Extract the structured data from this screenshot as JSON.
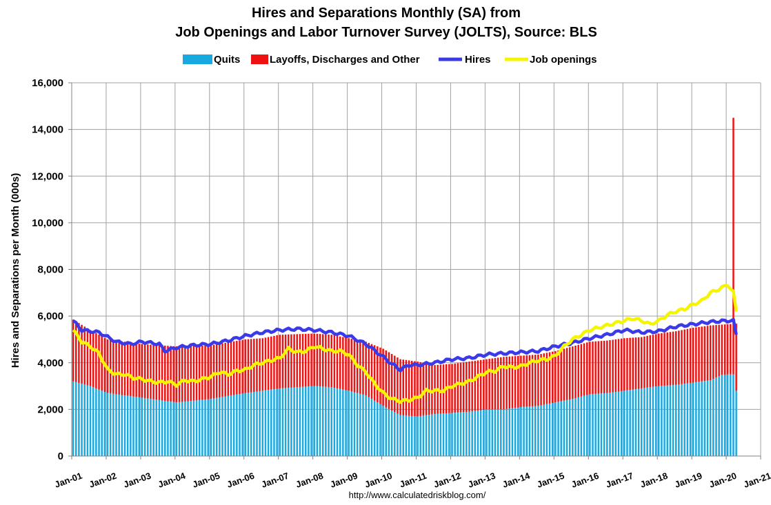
{
  "chart_data": {
    "type": "bar",
    "title_line1": "Hires and Separations Monthly (SA) from",
    "title_line2": "Job Openings and Labor Turnover Survey (JOLTS), Source: BLS",
    "ylabel": "Hires and Separations per Month (000s)",
    "xlabel": "",
    "source": "http://www.calculatedriskblog.com/",
    "ylim": [
      0,
      16000
    ],
    "yticks": [
      "0",
      "2,000",
      "4,000",
      "6,000",
      "8,000",
      "10,000",
      "12,000",
      "14,000",
      "16,000"
    ],
    "ytick_values": [
      0,
      2000,
      4000,
      6000,
      8000,
      10000,
      12000,
      14000,
      16000
    ],
    "xticks": [
      "Jan-01",
      "Jan-02",
      "Jan-03",
      "Jan-04",
      "Jan-05",
      "Jan-06",
      "Jan-07",
      "Jan-08",
      "Jan-09",
      "Jan-10",
      "Jan-11",
      "Jan-12",
      "Jan-13",
      "Jan-14",
      "Jan-15",
      "Jan-16",
      "Jan-17",
      "Jan-18",
      "Jan-19",
      "Jan-20",
      "Jan-21"
    ],
    "x_start": "Jan-01",
    "frequency": "monthly",
    "grid": true,
    "legend_position": "top-center",
    "legend": [
      {
        "name": "Quits",
        "kind": "bar",
        "color": "#19a9e1"
      },
      {
        "name": "Layoffs, Discharges and Other",
        "kind": "bar",
        "color": "#ee1111"
      },
      {
        "name": "Hires",
        "kind": "line",
        "color": "#3a3ae8"
      },
      {
        "name": "Job openings",
        "kind": "line",
        "color": "#f5f500"
      }
    ],
    "series": [
      {
        "name": "Quits",
        "role": "stacked-bar-bottom",
        "anchors": [
          [
            0,
            3200
          ],
          [
            6,
            3000
          ],
          [
            12,
            2700
          ],
          [
            24,
            2500
          ],
          [
            36,
            2300
          ],
          [
            48,
            2450
          ],
          [
            60,
            2700
          ],
          [
            66,
            2800
          ],
          [
            72,
            2900
          ],
          [
            84,
            3000
          ],
          [
            90,
            2950
          ],
          [
            96,
            2800
          ],
          [
            102,
            2600
          ],
          [
            108,
            2150
          ],
          [
            114,
            1750
          ],
          [
            120,
            1700
          ],
          [
            126,
            1800
          ],
          [
            132,
            1850
          ],
          [
            138,
            1900
          ],
          [
            144,
            2000
          ],
          [
            150,
            2000
          ],
          [
            156,
            2100
          ],
          [
            162,
            2150
          ],
          [
            168,
            2300
          ],
          [
            174,
            2450
          ],
          [
            180,
            2650
          ],
          [
            186,
            2700
          ],
          [
            192,
            2800
          ],
          [
            198,
            2900
          ],
          [
            204,
            3000
          ],
          [
            210,
            3050
          ],
          [
            216,
            3150
          ],
          [
            222,
            3250
          ],
          [
            228,
            3400
          ],
          [
            234,
            3450
          ],
          [
            240,
            3550
          ],
          [
            226,
            3480
          ],
          [
            228,
            3500
          ],
          [
            229,
            3350
          ],
          [
            230,
            3500
          ],
          [
            231,
            3550
          ],
          [
            234,
            3500
          ],
          [
            236,
            3500
          ],
          [
            237,
            3470
          ],
          [
            238,
            3450
          ],
          [
            239,
            3480
          ],
          [
            240,
            3500
          ],
          [
            241,
            3400
          ],
          [
            242,
            3450
          ],
          [
            243,
            3500
          ],
          [
            244,
            3500
          ],
          [
            245,
            3550
          ],
          [
            246,
            3500
          ],
          [
            247,
            3450
          ],
          [
            248,
            3500
          ],
          [
            229,
            3500
          ],
          [
            230,
            3500
          ],
          [
            231,
            2800
          ]
        ]
      },
      {
        "name": "Layoffs, Discharges and Other",
        "role": "stacked-bar-top",
        "anchors": [
          [
            0,
            5850
          ],
          [
            6,
            5400
          ],
          [
            12,
            5000
          ],
          [
            24,
            4800
          ],
          [
            36,
            4700
          ],
          [
            48,
            4750
          ],
          [
            60,
            5000
          ],
          [
            66,
            5050
          ],
          [
            72,
            5200
          ],
          [
            84,
            5250
          ],
          [
            90,
            5200
          ],
          [
            96,
            5050
          ],
          [
            102,
            4900
          ],
          [
            108,
            4600
          ],
          [
            114,
            4150
          ],
          [
            120,
            4050
          ],
          [
            126,
            3900
          ],
          [
            132,
            3950
          ],
          [
            138,
            4050
          ],
          [
            144,
            4150
          ],
          [
            150,
            4250
          ],
          [
            156,
            4300
          ],
          [
            162,
            4350
          ],
          [
            168,
            4500
          ],
          [
            174,
            4700
          ],
          [
            180,
            4900
          ],
          [
            186,
            4950
          ],
          [
            192,
            5050
          ],
          [
            198,
            5100
          ],
          [
            204,
            5250
          ],
          [
            210,
            5350
          ],
          [
            216,
            5500
          ],
          [
            222,
            5600
          ],
          [
            228,
            5650
          ],
          [
            234,
            5700
          ],
          [
            240,
            5750
          ]
        ]
      },
      {
        "name": "Hires",
        "anchors": [
          [
            0,
            5800
          ],
          [
            3,
            5400
          ],
          [
            9,
            5300
          ],
          [
            12,
            5100
          ],
          [
            15,
            4900
          ],
          [
            20,
            4800
          ],
          [
            24,
            4900
          ],
          [
            27,
            4850
          ],
          [
            30,
            4800
          ],
          [
            32,
            4500
          ],
          [
            36,
            4650
          ],
          [
            42,
            4750
          ],
          [
            48,
            4800
          ],
          [
            54,
            4950
          ],
          [
            60,
            5150
          ],
          [
            66,
            5300
          ],
          [
            72,
            5400
          ],
          [
            78,
            5450
          ],
          [
            84,
            5400
          ],
          [
            90,
            5300
          ],
          [
            96,
            5150
          ],
          [
            102,
            4800
          ],
          [
            108,
            4250
          ],
          [
            111,
            3950
          ],
          [
            114,
            3700
          ],
          [
            117,
            3900
          ],
          [
            120,
            3900
          ],
          [
            126,
            4000
          ],
          [
            132,
            4150
          ],
          [
            138,
            4200
          ],
          [
            144,
            4350
          ],
          [
            150,
            4400
          ],
          [
            156,
            4450
          ],
          [
            162,
            4500
          ],
          [
            168,
            4700
          ],
          [
            174,
            4850
          ],
          [
            180,
            5050
          ],
          [
            186,
            5200
          ],
          [
            192,
            5400
          ],
          [
            198,
            5300
          ],
          [
            204,
            5350
          ],
          [
            210,
            5550
          ],
          [
            216,
            5650
          ],
          [
            222,
            5750
          ],
          [
            228,
            5800
          ],
          [
            234,
            5850
          ],
          [
            237,
            5800
          ],
          [
            238,
            5800
          ],
          [
            239,
            5700
          ],
          [
            240,
            5800
          ],
          [
            241,
            5700
          ],
          [
            242,
            5800
          ],
          [
            243,
            5900
          ],
          [
            244,
            5900
          ],
          [
            245,
            5950
          ],
          [
            246,
            5900
          ],
          [
            247,
            5850
          ],
          [
            248,
            5800
          ],
          [
            249,
            5500
          ],
          [
            230,
            5800
          ],
          [
            231,
            5200
          ]
        ]
      },
      {
        "name": "Job openings",
        "anchors": [
          [
            0,
            5400
          ],
          [
            3,
            4900
          ],
          [
            6,
            4700
          ],
          [
            9,
            4400
          ],
          [
            12,
            3700
          ],
          [
            15,
            3500
          ],
          [
            18,
            3500
          ],
          [
            21,
            3350
          ],
          [
            24,
            3300
          ],
          [
            27,
            3200
          ],
          [
            30,
            3150
          ],
          [
            33,
            3200
          ],
          [
            36,
            3050
          ],
          [
            39,
            3250
          ],
          [
            42,
            3200
          ],
          [
            45,
            3300
          ],
          [
            48,
            3400
          ],
          [
            51,
            3600
          ],
          [
            54,
            3500
          ],
          [
            57,
            3650
          ],
          [
            60,
            3700
          ],
          [
            63,
            3900
          ],
          [
            66,
            4000
          ],
          [
            69,
            4100
          ],
          [
            72,
            4200
          ],
          [
            75,
            4600
          ],
          [
            78,
            4450
          ],
          [
            81,
            4500
          ],
          [
            84,
            4700
          ],
          [
            87,
            4600
          ],
          [
            90,
            4500
          ],
          [
            93,
            4500
          ],
          [
            96,
            4350
          ],
          [
            99,
            3900
          ],
          [
            102,
            3600
          ],
          [
            105,
            3100
          ],
          [
            108,
            2700
          ],
          [
            111,
            2450
          ],
          [
            114,
            2350
          ],
          [
            117,
            2400
          ],
          [
            120,
            2500
          ],
          [
            123,
            2800
          ],
          [
            126,
            2800
          ],
          [
            129,
            2800
          ],
          [
            132,
            3000
          ],
          [
            135,
            3100
          ],
          [
            138,
            3200
          ],
          [
            141,
            3400
          ],
          [
            144,
            3600
          ],
          [
            147,
            3650
          ],
          [
            150,
            3850
          ],
          [
            153,
            3800
          ],
          [
            156,
            3850
          ],
          [
            159,
            4000
          ],
          [
            162,
            4100
          ],
          [
            165,
            4150
          ],
          [
            168,
            4300
          ],
          [
            171,
            4700
          ],
          [
            174,
            5000
          ],
          [
            177,
            5200
          ],
          [
            180,
            5400
          ],
          [
            183,
            5500
          ],
          [
            186,
            5600
          ],
          [
            189,
            5700
          ],
          [
            192,
            5800
          ],
          [
            195,
            5900
          ],
          [
            198,
            5800
          ],
          [
            201,
            5650
          ],
          [
            204,
            5800
          ],
          [
            207,
            6050
          ],
          [
            210,
            6200
          ],
          [
            213,
            6300
          ],
          [
            216,
            6500
          ],
          [
            219,
            6650
          ],
          [
            222,
            7000
          ],
          [
            225,
            7150
          ],
          [
            228,
            7350
          ],
          [
            231,
            7300
          ],
          [
            234,
            7250
          ],
          [
            237,
            7200
          ],
          [
            240,
            7150
          ],
          [
            243,
            6800
          ],
          [
            246,
            6600
          ],
          [
            249,
            6400
          ],
          [
            230,
            7000
          ],
          [
            231,
            6200
          ]
        ]
      }
    ]
  }
}
